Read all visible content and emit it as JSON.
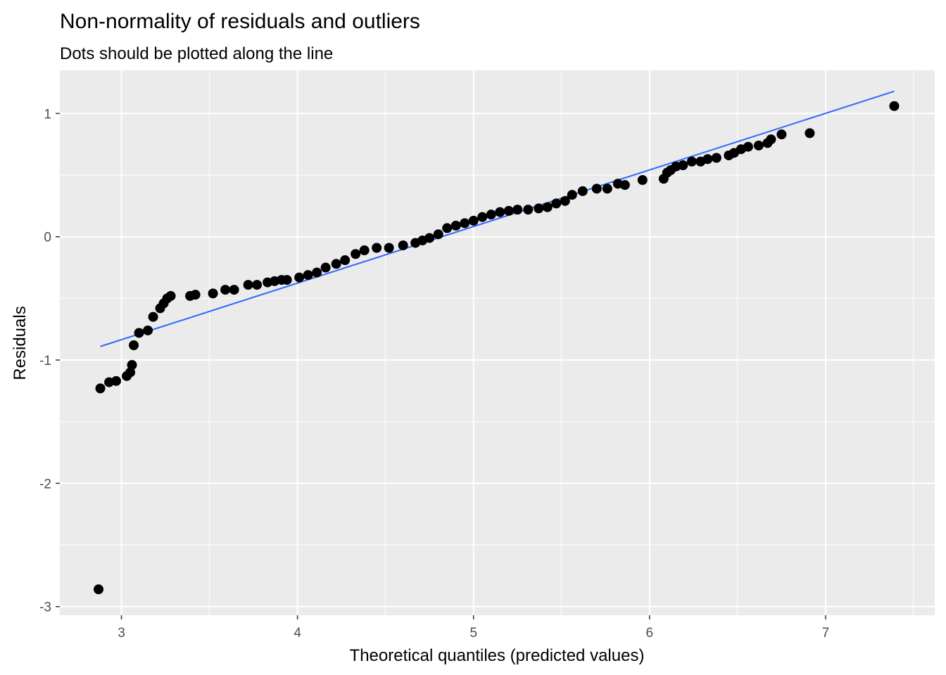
{
  "chart_data": {
    "type": "scatter",
    "title": "Non-normality of residuals and outliers",
    "subtitle": "Dots should be plotted along the line",
    "xlabel": "Theoretical quantiles (predicted values)",
    "ylabel": "Residuals",
    "xlim": [
      2.65,
      7.62
    ],
    "ylim": [
      -3.07,
      1.35
    ],
    "x_ticks": [
      3,
      4,
      5,
      6,
      7
    ],
    "x_tick_labels": [
      "3",
      "4",
      "5",
      "6",
      "7"
    ],
    "y_ticks": [
      -3,
      -2,
      -1,
      0,
      1
    ],
    "y_tick_labels": [
      "-3",
      "-2",
      "-1",
      "0",
      "1"
    ],
    "grid": true,
    "colors": {
      "panel_background": "#EBEBEB",
      "grid": "#FFFFFF",
      "points": "#000000",
      "reference_line": "#3366FF"
    },
    "reference_line": {
      "x": [
        2.88,
        7.39
      ],
      "y": [
        -0.89,
        1.18
      ]
    },
    "points": [
      {
        "x": 2.87,
        "y": -2.86
      },
      {
        "x": 2.88,
        "y": -1.23
      },
      {
        "x": 2.93,
        "y": -1.18
      },
      {
        "x": 2.97,
        "y": -1.17
      },
      {
        "x": 3.03,
        "y": -1.13
      },
      {
        "x": 3.05,
        "y": -1.1
      },
      {
        "x": 3.06,
        "y": -1.04
      },
      {
        "x": 3.07,
        "y": -0.88
      },
      {
        "x": 3.1,
        "y": -0.78
      },
      {
        "x": 3.15,
        "y": -0.76
      },
      {
        "x": 3.18,
        "y": -0.65
      },
      {
        "x": 3.22,
        "y": -0.58
      },
      {
        "x": 3.24,
        "y": -0.54
      },
      {
        "x": 3.26,
        "y": -0.5
      },
      {
        "x": 3.28,
        "y": -0.48
      },
      {
        "x": 3.39,
        "y": -0.48
      },
      {
        "x": 3.42,
        "y": -0.47
      },
      {
        "x": 3.52,
        "y": -0.46
      },
      {
        "x": 3.59,
        "y": -0.43
      },
      {
        "x": 3.64,
        "y": -0.43
      },
      {
        "x": 3.72,
        "y": -0.39
      },
      {
        "x": 3.77,
        "y": -0.39
      },
      {
        "x": 3.83,
        "y": -0.37
      },
      {
        "x": 3.87,
        "y": -0.36
      },
      {
        "x": 3.91,
        "y": -0.35
      },
      {
        "x": 3.94,
        "y": -0.35
      },
      {
        "x": 4.01,
        "y": -0.33
      },
      {
        "x": 4.06,
        "y": -0.31
      },
      {
        "x": 4.11,
        "y": -0.29
      },
      {
        "x": 4.16,
        "y": -0.25
      },
      {
        "x": 4.22,
        "y": -0.22
      },
      {
        "x": 4.27,
        "y": -0.19
      },
      {
        "x": 4.33,
        "y": -0.14
      },
      {
        "x": 4.38,
        "y": -0.11
      },
      {
        "x": 4.45,
        "y": -0.09
      },
      {
        "x": 4.52,
        "y": -0.09
      },
      {
        "x": 4.6,
        "y": -0.07
      },
      {
        "x": 4.67,
        "y": -0.05
      },
      {
        "x": 4.71,
        "y": -0.03
      },
      {
        "x": 4.75,
        "y": -0.01
      },
      {
        "x": 4.8,
        "y": 0.02
      },
      {
        "x": 4.85,
        "y": 0.07
      },
      {
        "x": 4.9,
        "y": 0.09
      },
      {
        "x": 4.95,
        "y": 0.11
      },
      {
        "x": 5.0,
        "y": 0.13
      },
      {
        "x": 5.05,
        "y": 0.16
      },
      {
        "x": 5.1,
        "y": 0.18
      },
      {
        "x": 5.15,
        "y": 0.2
      },
      {
        "x": 5.2,
        "y": 0.21
      },
      {
        "x": 5.25,
        "y": 0.22
      },
      {
        "x": 5.31,
        "y": 0.22
      },
      {
        "x": 5.37,
        "y": 0.23
      },
      {
        "x": 5.42,
        "y": 0.24
      },
      {
        "x": 5.47,
        "y": 0.27
      },
      {
        "x": 5.52,
        "y": 0.29
      },
      {
        "x": 5.56,
        "y": 0.34
      },
      {
        "x": 5.62,
        "y": 0.37
      },
      {
        "x": 5.7,
        "y": 0.39
      },
      {
        "x": 5.76,
        "y": 0.39
      },
      {
        "x": 5.82,
        "y": 0.43
      },
      {
        "x": 5.86,
        "y": 0.42
      },
      {
        "x": 5.96,
        "y": 0.46
      },
      {
        "x": 6.08,
        "y": 0.47
      },
      {
        "x": 6.1,
        "y": 0.52
      },
      {
        "x": 6.12,
        "y": 0.54
      },
      {
        "x": 6.15,
        "y": 0.57
      },
      {
        "x": 6.19,
        "y": 0.58
      },
      {
        "x": 6.24,
        "y": 0.61
      },
      {
        "x": 6.29,
        "y": 0.61
      },
      {
        "x": 6.33,
        "y": 0.63
      },
      {
        "x": 6.38,
        "y": 0.64
      },
      {
        "x": 6.45,
        "y": 0.66
      },
      {
        "x": 6.48,
        "y": 0.68
      },
      {
        "x": 6.52,
        "y": 0.71
      },
      {
        "x": 6.56,
        "y": 0.73
      },
      {
        "x": 6.62,
        "y": 0.74
      },
      {
        "x": 6.67,
        "y": 0.76
      },
      {
        "x": 6.69,
        "y": 0.79
      },
      {
        "x": 6.75,
        "y": 0.83
      },
      {
        "x": 6.91,
        "y": 0.84
      },
      {
        "x": 7.39,
        "y": 1.06
      }
    ]
  }
}
